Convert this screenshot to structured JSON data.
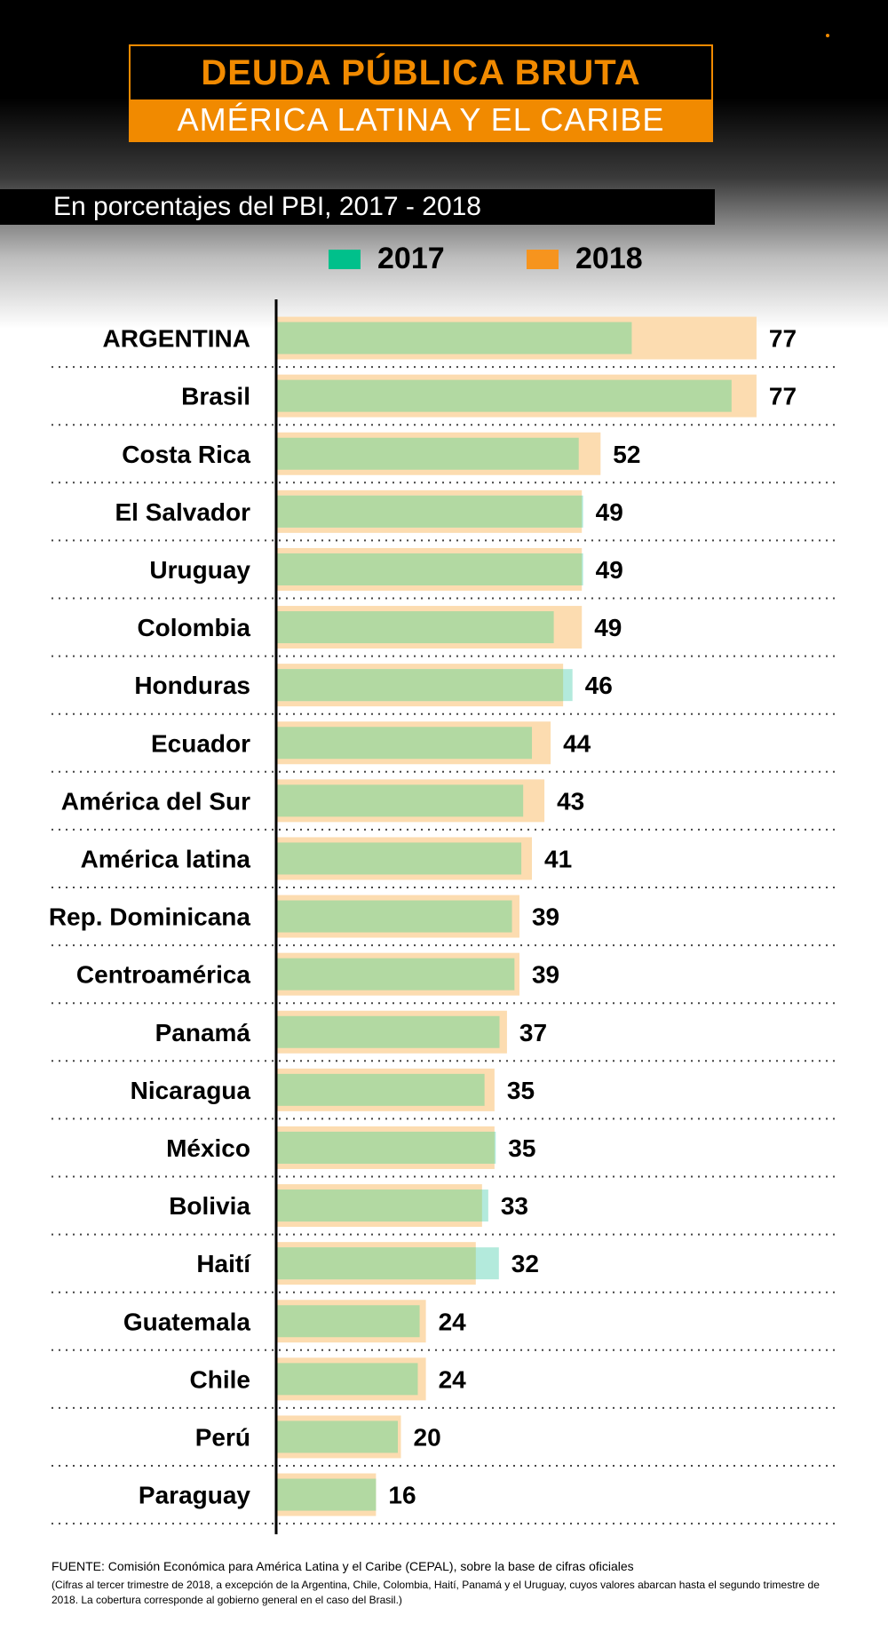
{
  "title": "DEUDA PÚBLICA BRUTA",
  "subtitle": "AMÉRICA LATINA Y EL CARIBE",
  "description": "En porcentajes del PBI,  2017 - 2018",
  "legend": [
    {
      "label": "2017",
      "color": "#00c08b"
    },
    {
      "label": "2018",
      "color": "#f6941e"
    }
  ],
  "colors": {
    "bar_2017": "#b2d9a2",
    "bar_2018": "#fcdcb0",
    "bar_2017_over": "#b3eadc",
    "accent": "#f18a00"
  },
  "chart_data": {
    "type": "bar",
    "orientation": "horizontal",
    "categories": [
      "ARGENTINA",
      "Brasil",
      "Costa Rica",
      "El Salvador",
      "Uruguay",
      "Colombia",
      "Honduras",
      "Ecuador",
      "América del Sur",
      "América latina",
      "Rep. Dominicana",
      "Centroamérica",
      "Panamá",
      "Nicaragua",
      "México",
      "Bolivia",
      "Haití",
      "Guatemala",
      "Chile",
      "Perú",
      "Paraguay"
    ],
    "series": [
      {
        "name": "2017",
        "values": [
          57,
          73,
          48.5,
          49.2,
          49.2,
          44.5,
          47.5,
          41,
          39.6,
          39.3,
          37.8,
          38.2,
          35.8,
          33.4,
          35.2,
          34,
          35.7,
          23,
          22.7,
          19.5,
          16
        ]
      },
      {
        "name": "2018",
        "values": [
          77,
          77,
          52,
          49,
          49,
          49,
          46,
          44,
          43,
          41,
          39,
          39,
          37,
          35,
          35,
          33,
          32,
          24,
          24,
          20,
          16
        ]
      }
    ],
    "data_labels": [
      "77",
      "77",
      "52",
      "49",
      "49",
      "49",
      "46",
      "44",
      "43",
      "41",
      "39",
      "39",
      "37",
      "35",
      "35",
      "33",
      "32",
      "24",
      "24",
      "20",
      "16"
    ],
    "grid": false,
    "legend_position": "top",
    "xlim": [
      0,
      80
    ]
  },
  "source": "FUENTE: Comisión Económica para América Latina y el Caribe (CEPAL), sobre la base de cifras oficiales",
  "note": "(Cifras al tercer trimestre de 2018, a excepción de la Argentina, Chile, Colombia, Haití, Panamá y el Uruguay, cuyos valores abarcan hasta el segundo trimestre de 2018. La cobertura corresponde al gobierno general en el caso del Brasil.)"
}
